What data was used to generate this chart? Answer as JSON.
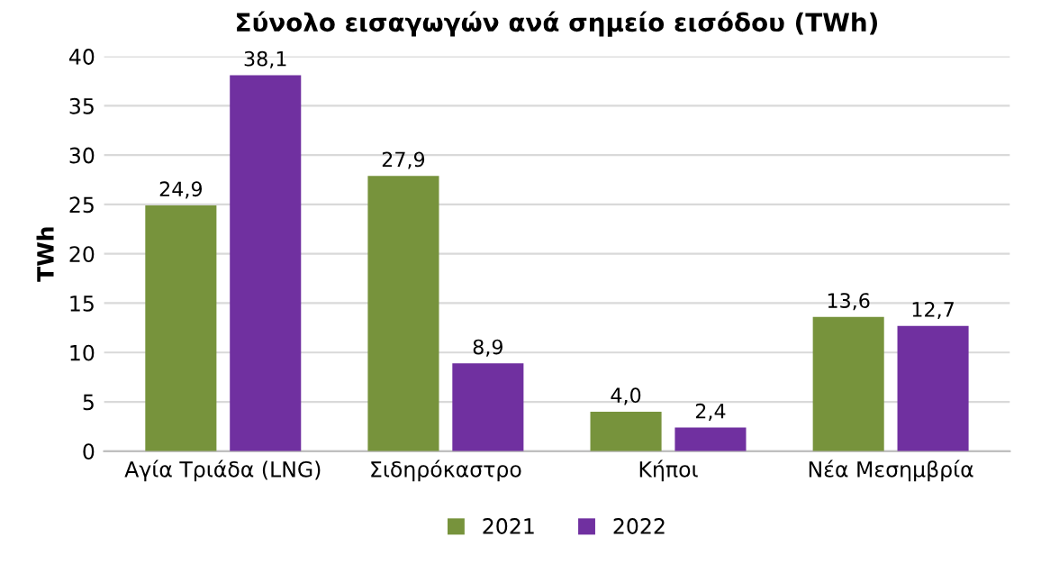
{
  "chart_data": {
    "type": "bar",
    "title": "Σύνολο εισαγωγών ανά σημείο εισόδου (TWh)",
    "ylabel": "TWh",
    "categories": [
      "Αγία Τριάδα (LNG)",
      "Σιδηρόκαστρο",
      "Κήποι",
      "Νέα Μεσημβρία"
    ],
    "series": [
      {
        "name": "2021",
        "color": "#77933c",
        "values": [
          24.9,
          27.9,
          4.0,
          13.6
        ],
        "value_labels": [
          "24,9",
          "27,9",
          "4,0",
          "13,6"
        ]
      },
      {
        "name": "2022",
        "color": "#7030a0",
        "values": [
          38.1,
          8.9,
          2.4,
          12.7
        ],
        "value_labels": [
          "38,1",
          "8,9",
          "2,4",
          "12,7"
        ]
      }
    ],
    "ylim": [
      0,
      40
    ],
    "yticks": [
      0,
      5,
      10,
      15,
      20,
      25,
      30,
      35,
      40
    ],
    "grid": "y",
    "legend": "bottom"
  }
}
